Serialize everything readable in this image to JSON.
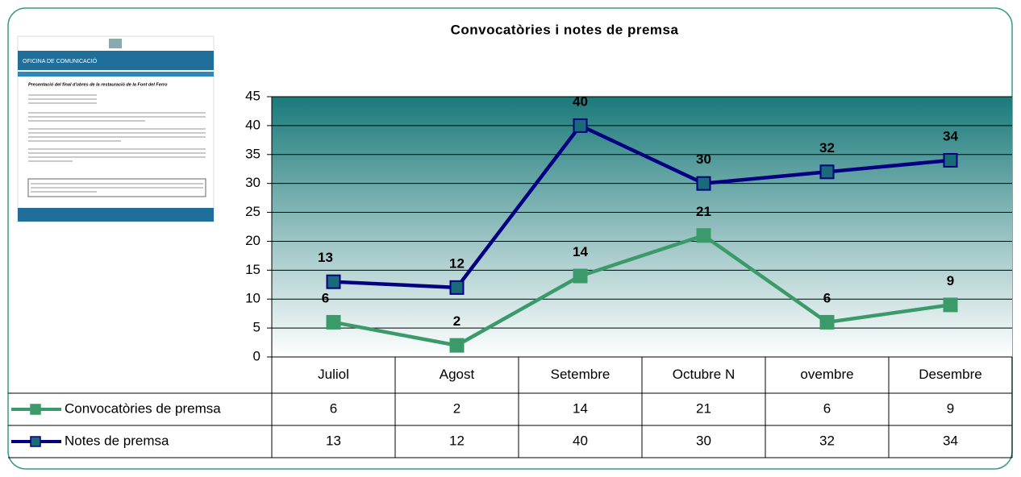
{
  "chart_data": {
    "type": "line",
    "title": "Convocatòries i notes de premsa",
    "categories": [
      "Juliol",
      "Agost",
      "Setembre",
      "Octubre N",
      "ovembre",
      "Desembre"
    ],
    "series": [
      {
        "name": "Convocatòries de premsa",
        "color": "#3a9a6a",
        "values": [
          6,
          2,
          14,
          21,
          6,
          9
        ]
      },
      {
        "name": "Notes de premsa",
        "color": "#000080",
        "values": [
          13,
          12,
          40,
          30,
          32,
          34
        ]
      }
    ],
    "ylim": [
      0,
      45
    ],
    "yticks": [
      0,
      5,
      10,
      15,
      20,
      25,
      30,
      35,
      40,
      45
    ],
    "grid": true,
    "data_table": true
  },
  "thumbnail": {
    "office": "OFICINA DE COMUNICACIÓ",
    "heading": "Presentació del final d'obres de la restauració de la Font del Ferro"
  }
}
